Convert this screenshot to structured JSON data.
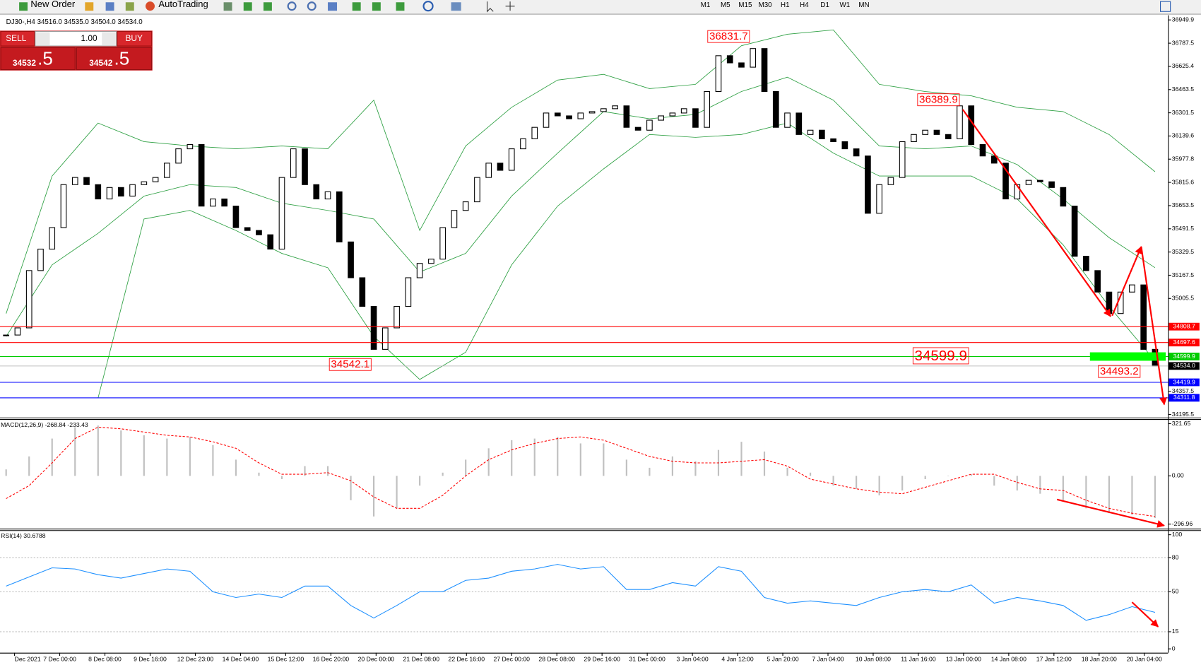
{
  "toolbar": {
    "new_order": "New Order",
    "autotrading": "AutoTrading",
    "timeframes": [
      "M1",
      "M5",
      "M15",
      "M30",
      "H1",
      "H4",
      "D1",
      "W1",
      "MN"
    ]
  },
  "trade_panel": {
    "sell": "SELL",
    "buy": "BUY",
    "volume": "1.00",
    "sell_price_main": "34532",
    "sell_price_big": ".5",
    "buy_price_main": "34542",
    "buy_price_big": ".5"
  },
  "time_labels": [
    "Dec 2021",
    "7 Dec 00:00",
    "8 Dec 08:00",
    "9 Dec 16:00",
    "12 Dec 23:00",
    "14 Dec 04:00",
    "15 Dec 12:00",
    "16 Dec 20:00",
    "20 Dec 00:00",
    "21 Dec 08:00",
    "22 Dec 16:00",
    "27 Dec 00:00",
    "28 Dec 08:00",
    "29 Dec 16:00",
    "31 Dec 00:00",
    "3 Jan 04:00",
    "4 Jan 12:00",
    "5 Jan 20:00",
    "7 Jan 04:00",
    "10 Jan 08:00",
    "11 Jan 16:00",
    "13 Jan 00:00",
    "14 Jan 08:00",
    "17 Jan 12:00",
    "18 Jan 20:00",
    "20 Jan 04:00"
  ],
  "chart_data": [
    {
      "type": "candlestick",
      "title": "DJ30-,H4 34516.0 34535.0 34504.0 34534.0",
      "closes": [
        34750,
        34800,
        35200,
        35350,
        35500,
        35800,
        35850,
        35800,
        35700,
        35780,
        35720,
        35800,
        35820,
        35850,
        35950,
        36050,
        36080,
        35650,
        35700,
        35650,
        35500,
        35480,
        35450,
        35350,
        35850,
        36050,
        35800,
        35700,
        35750,
        35400,
        35150,
        34950,
        34650,
        34800,
        34950,
        35150,
        35250,
        35280,
        35500,
        35620,
        35680,
        35850,
        35950,
        35900,
        36050,
        36120,
        36200,
        36300,
        36280,
        36260,
        36300,
        36310,
        36330,
        36350,
        36200,
        36180,
        36250,
        36280,
        36300,
        36330,
        36200,
        36450,
        36700,
        36650,
        36620,
        36750,
        36450,
        36200,
        36300,
        36150,
        36180,
        36120,
        36100,
        36050,
        36000,
        35600,
        35800,
        35850,
        36100,
        36150,
        36180,
        36150,
        36120,
        36350,
        36080,
        36000,
        35950,
        35700,
        35800,
        35830,
        35820,
        35780,
        35650,
        35300,
        35200,
        35050,
        34900,
        35050,
        35100,
        34650,
        34534
      ],
      "bands_color": "#2ea043",
      "bollinger": {
        "upper": [
          34900,
          35860,
          36230,
          36100,
          36070,
          36050,
          36070,
          36050,
          36390,
          35480,
          36070,
          36340,
          36530,
          36570,
          36470,
          36500,
          36770,
          36850,
          36880,
          36500,
          36450,
          36420,
          36340,
          36310,
          36150,
          35890
        ],
        "middle": [
          34740,
          35240,
          35460,
          35720,
          35800,
          35780,
          35670,
          35620,
          35560,
          35190,
          35320,
          35720,
          36020,
          36310,
          36260,
          36290,
          36450,
          36550,
          36390,
          36070,
          36050,
          36070,
          35940,
          35700,
          35430,
          35220
        ],
        "lower": [
          null,
          null,
          34310,
          35560,
          35620,
          35480,
          35320,
          35220,
          34740,
          34440,
          34630,
          35240,
          35650,
          35910,
          36150,
          36130,
          36150,
          36230,
          36020,
          35860,
          35860,
          35860,
          35700,
          35380,
          34950,
          34570
        ]
      },
      "ylim": [
        34174,
        36982
      ],
      "yticks": [
        36949.9,
        36787.5,
        36625.4,
        36463.5,
        36301.5,
        36139.6,
        35977.8,
        35815.6,
        35653.5,
        35491.5,
        35329.5,
        35167.5,
        35005.5,
        34357.5,
        34195.5
      ],
      "levels": [
        {
          "value": 34808.7,
          "color": "#ff0000"
        },
        {
          "value": 34697.6,
          "color": "#ff0000"
        },
        {
          "value": 34599.9,
          "color": "#00cc00"
        },
        {
          "value": {
            "value": 34534,
            "label": "34534.0"
          },
          "color": "#000000"
        },
        {
          "value": 34419.9,
          "color": "#0000ff"
        },
        {
          "value": 34311.8,
          "color": "#0000ff"
        }
      ],
      "annotations": [
        36831.7,
        36389.9,
        34542.1,
        34599.9,
        34493.2
      ]
    },
    {
      "type": "macd",
      "title": "MACD(12,26,9) -268.84 -233.43",
      "histogram": [
        40,
        120,
        230,
        300,
        310,
        280,
        250,
        230,
        240,
        190,
        100,
        20,
        -20,
        60,
        60,
        -150,
        -250,
        -200,
        -60,
        20,
        100,
        170,
        220,
        230,
        240,
        200,
        200,
        100,
        50,
        120,
        90,
        160,
        210,
        150,
        50,
        20,
        -60,
        -80,
        -120,
        -90,
        -20,
        0,
        10,
        -60,
        -90,
        -110,
        -150,
        -200,
        -230,
        -240,
        -260
      ],
      "signal": [
        -140,
        -60,
        80,
        230,
        300,
        290,
        270,
        250,
        240,
        210,
        170,
        80,
        10,
        10,
        20,
        -30,
        -130,
        -200,
        -200,
        -120,
        0,
        100,
        160,
        200,
        230,
        240,
        220,
        170,
        120,
        90,
        80,
        80,
        90,
        100,
        60,
        -20,
        -50,
        -80,
        -100,
        -110,
        -70,
        -30,
        10,
        10,
        -40,
        -80,
        -90,
        -150,
        -200,
        -230,
        -250
      ],
      "histogram_color": "#c0c0c0",
      "signal_color": "#ff0000",
      "ylim": [
        -325,
        350
      ],
      "yticks": [
        321.65,
        {
          "value": 0,
          "label": "0.00"
        },
        -296.96
      ]
    },
    {
      "type": "rsi",
      "title": "RSI(14) 30.6788",
      "values": [
        55,
        63,
        71,
        70,
        65,
        62,
        66,
        70,
        68,
        50,
        45,
        48,
        45,
        55,
        55,
        38,
        27,
        38,
        50,
        50,
        60,
        62,
        68,
        70,
        74,
        70,
        72,
        52,
        52,
        58,
        55,
        72,
        68,
        45,
        40,
        42,
        40,
        38,
        45,
        50,
        52,
        50,
        56,
        40,
        45,
        42,
        38,
        25,
        30,
        37,
        32
      ],
      "color": "#1e90ff",
      "ylim": [
        -3.4,
        104
      ],
      "yticks": [
        100,
        80,
        50,
        15,
        0
      ],
      "levels": [
        80,
        50,
        15
      ]
    }
  ]
}
